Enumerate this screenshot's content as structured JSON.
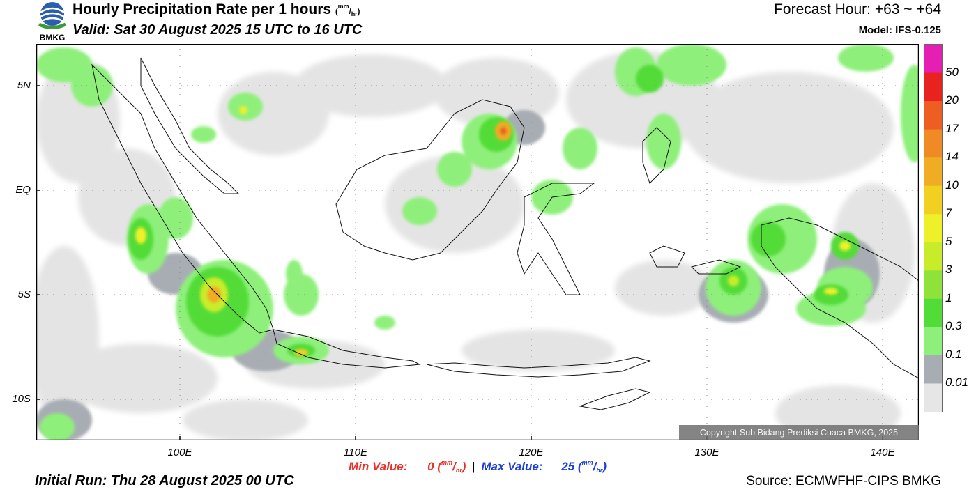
{
  "header": {
    "title": "Hourly Precipitation Rate per 1 hours",
    "title_unit_num": "mm",
    "title_unit_den": "hr",
    "valid": "Valid: Sat 30 August 2025 15 UTC to 16 UTC",
    "forecast_hour": "Forecast Hour: +63 ~ +64",
    "model": "Model: IFS-0.125"
  },
  "logo": {
    "text": "BMKG",
    "icon": "bmkg-logo-icon"
  },
  "map": {
    "lat_labels": [
      "5N",
      "EQ",
      "5S",
      "10S"
    ],
    "lon_labels": [
      "100E",
      "110E",
      "120E",
      "130E",
      "140E"
    ],
    "copyright": "Copyright Sub Bidang Prediksi Cuaca BMKG, 2025"
  },
  "legend": {
    "labels": [
      "50",
      "20",
      "17",
      "14",
      "10",
      "7",
      "5",
      "3",
      "1",
      "0.3",
      "0.1",
      "0.01"
    ],
    "colors": [
      "#e61fb4",
      "#e8231f",
      "#ee5d22",
      "#f08a24",
      "#f0ac22",
      "#f2d022",
      "#eef02a",
      "#c9ec2a",
      "#8ee23a",
      "#52dc38",
      "#8ef07a",
      "#a8adb4",
      "#e6e6e6"
    ]
  },
  "footer": {
    "min_label": "Min Value:",
    "min_value": "0",
    "max_label": "Max Value:",
    "max_value": "25",
    "unit_num": "mm",
    "unit_den": "hr",
    "separator": "|",
    "initial_run": "Initial Run: Thu 28 August 2025 00 UTC",
    "source": "Source: ECMWFHF-CIPS BMKG"
  }
}
